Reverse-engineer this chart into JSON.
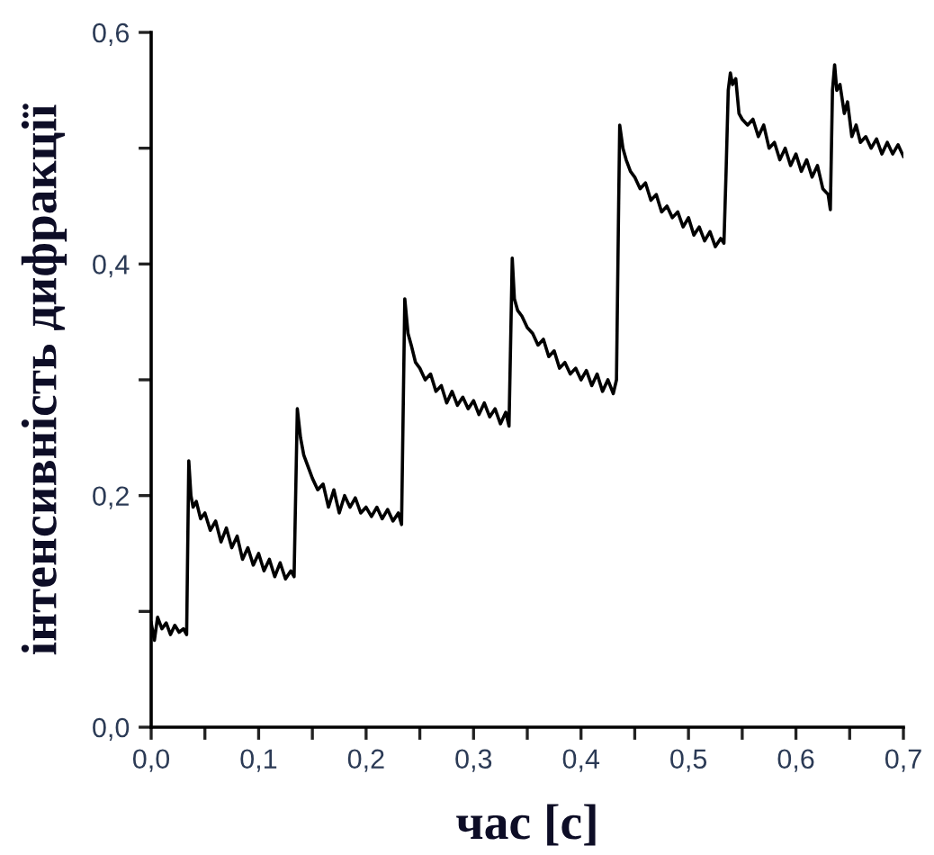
{
  "chart_data": {
    "type": "line",
    "xlabel": "час [с]",
    "ylabel": "інтенсивність дифракції",
    "xlim": [
      0,
      0.7
    ],
    "ylim": [
      0,
      0.6
    ],
    "xticks": [
      {
        "value": 0,
        "label": "0,0"
      },
      {
        "value": 0.1,
        "label": "0,1"
      },
      {
        "value": 0.2,
        "label": "0,2"
      },
      {
        "value": 0.3,
        "label": "0,3"
      },
      {
        "value": 0.4,
        "label": "0,4"
      },
      {
        "value": 0.5,
        "label": "0,5"
      },
      {
        "value": 0.6,
        "label": "0,6"
      },
      {
        "value": 0.7,
        "label": "0,7"
      },
      {
        "value": 0.05,
        "label": null
      },
      {
        "value": 0.15,
        "label": null
      },
      {
        "value": 0.25,
        "label": null
      },
      {
        "value": 0.35,
        "label": null
      },
      {
        "value": 0.45,
        "label": null
      },
      {
        "value": 0.55,
        "label": null
      },
      {
        "value": 0.65,
        "label": null
      }
    ],
    "yticks": [
      {
        "value": 0,
        "label": "0,0"
      },
      {
        "value": 0.2,
        "label": "0,2"
      },
      {
        "value": 0.4,
        "label": "0,4"
      },
      {
        "value": 0.6,
        "label": "0,6"
      },
      {
        "value": 0.1,
        "label": null
      },
      {
        "value": 0.3,
        "label": null
      },
      {
        "value": 0.5,
        "label": null
      }
    ],
    "grid": false,
    "legend": false,
    "line_style": "solid",
    "marker": "none",
    "series": [
      {
        "color": "#000000",
        "x": [
          0.0,
          0.003,
          0.006,
          0.01,
          0.014,
          0.018,
          0.022,
          0.026,
          0.03,
          0.033,
          0.035,
          0.037,
          0.039,
          0.042,
          0.046,
          0.05,
          0.055,
          0.06,
          0.065,
          0.07,
          0.075,
          0.08,
          0.085,
          0.09,
          0.095,
          0.1,
          0.105,
          0.11,
          0.115,
          0.12,
          0.125,
          0.13,
          0.133,
          0.136,
          0.139,
          0.142,
          0.146,
          0.15,
          0.155,
          0.16,
          0.165,
          0.17,
          0.175,
          0.18,
          0.185,
          0.19,
          0.195,
          0.2,
          0.205,
          0.21,
          0.215,
          0.22,
          0.225,
          0.23,
          0.233,
          0.236,
          0.239,
          0.242,
          0.246,
          0.25,
          0.255,
          0.26,
          0.265,
          0.27,
          0.275,
          0.28,
          0.285,
          0.29,
          0.295,
          0.3,
          0.305,
          0.31,
          0.315,
          0.32,
          0.325,
          0.33,
          0.333,
          0.336,
          0.338,
          0.341,
          0.345,
          0.35,
          0.355,
          0.36,
          0.365,
          0.37,
          0.375,
          0.38,
          0.385,
          0.39,
          0.395,
          0.4,
          0.405,
          0.41,
          0.415,
          0.42,
          0.425,
          0.43,
          0.433,
          0.435,
          0.436,
          0.439,
          0.442,
          0.446,
          0.45,
          0.455,
          0.46,
          0.465,
          0.47,
          0.475,
          0.48,
          0.485,
          0.49,
          0.495,
          0.5,
          0.505,
          0.51,
          0.515,
          0.52,
          0.525,
          0.53,
          0.533,
          0.535,
          0.537,
          0.539,
          0.541,
          0.544,
          0.547,
          0.55,
          0.555,
          0.56,
          0.565,
          0.57,
          0.575,
          0.58,
          0.585,
          0.59,
          0.595,
          0.6,
          0.605,
          0.61,
          0.615,
          0.62,
          0.625,
          0.63,
          0.632,
          0.634,
          0.636,
          0.638,
          0.641,
          0.645,
          0.648,
          0.652,
          0.656,
          0.66,
          0.665,
          0.67,
          0.675,
          0.68,
          0.685,
          0.69,
          0.695,
          0.7
        ],
        "values": [
          0.09,
          0.075,
          0.095,
          0.085,
          0.09,
          0.08,
          0.088,
          0.082,
          0.085,
          0.08,
          0.23,
          0.2,
          0.19,
          0.195,
          0.18,
          0.185,
          0.17,
          0.178,
          0.16,
          0.172,
          0.155,
          0.165,
          0.145,
          0.155,
          0.14,
          0.15,
          0.135,
          0.145,
          0.13,
          0.142,
          0.128,
          0.135,
          0.13,
          0.275,
          0.25,
          0.235,
          0.225,
          0.215,
          0.205,
          0.21,
          0.19,
          0.205,
          0.185,
          0.2,
          0.19,
          0.198,
          0.185,
          0.19,
          0.182,
          0.19,
          0.18,
          0.188,
          0.178,
          0.185,
          0.175,
          0.37,
          0.34,
          0.33,
          0.315,
          0.31,
          0.3,
          0.305,
          0.29,
          0.295,
          0.28,
          0.29,
          0.278,
          0.285,
          0.275,
          0.282,
          0.27,
          0.28,
          0.268,
          0.275,
          0.262,
          0.272,
          0.26,
          0.405,
          0.37,
          0.36,
          0.355,
          0.345,
          0.34,
          0.33,
          0.335,
          0.32,
          0.325,
          0.31,
          0.315,
          0.305,
          0.31,
          0.3,
          0.308,
          0.295,
          0.305,
          0.29,
          0.3,
          0.288,
          0.3,
          0.45,
          0.52,
          0.5,
          0.49,
          0.48,
          0.475,
          0.465,
          0.47,
          0.455,
          0.46,
          0.445,
          0.45,
          0.44,
          0.445,
          0.432,
          0.44,
          0.425,
          0.432,
          0.42,
          0.428,
          0.415,
          0.422,
          0.418,
          0.48,
          0.55,
          0.565,
          0.555,
          0.56,
          0.53,
          0.525,
          0.52,
          0.525,
          0.51,
          0.52,
          0.5,
          0.505,
          0.49,
          0.5,
          0.485,
          0.495,
          0.48,
          0.49,
          0.475,
          0.485,
          0.465,
          0.46,
          0.447,
          0.55,
          0.572,
          0.55,
          0.555,
          0.53,
          0.54,
          0.51,
          0.52,
          0.505,
          0.51,
          0.5,
          0.508,
          0.495,
          0.505,
          0.495,
          0.503,
          0.493
        ]
      }
    ]
  }
}
